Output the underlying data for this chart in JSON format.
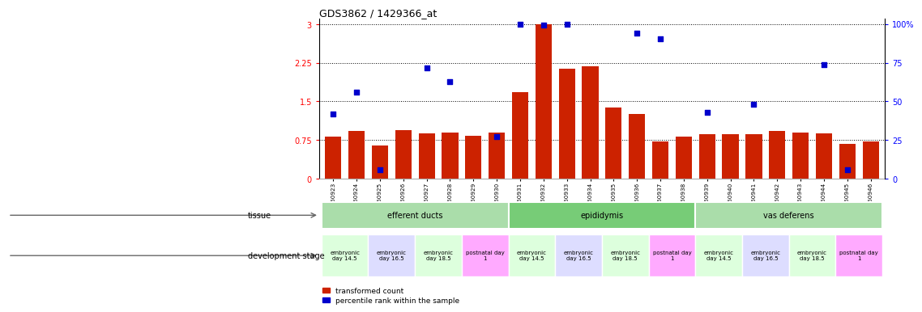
{
  "title": "GDS3862 / 1429366_at",
  "samples": [
    "GSM560923",
    "GSM560924",
    "GSM560925",
    "GSM560926",
    "GSM560927",
    "GSM560928",
    "GSM560929",
    "GSM560930",
    "GSM560931",
    "GSM560932",
    "GSM560933",
    "GSM560934",
    "GSM560935",
    "GSM560936",
    "GSM560937",
    "GSM560938",
    "GSM560939",
    "GSM560940",
    "GSM560941",
    "GSM560942",
    "GSM560943",
    "GSM560944",
    "GSM560945",
    "GSM560946"
  ],
  "bar_values": [
    0.82,
    0.93,
    0.65,
    0.95,
    0.88,
    0.9,
    0.83,
    0.9,
    1.68,
    3.0,
    2.13,
    2.18,
    1.38,
    1.25,
    0.72,
    0.82,
    0.87,
    0.87,
    0.87,
    0.92,
    0.9,
    0.88,
    0.68,
    0.72
  ],
  "scatter_values": [
    1.25,
    1.68,
    0.18,
    null,
    2.15,
    1.88,
    null,
    0.82,
    3.0,
    2.98,
    3.0,
    null,
    null,
    2.82,
    2.72,
    null,
    1.28,
    null,
    1.45,
    null,
    null,
    2.22,
    0.18,
    null
  ],
  "ylim_left": [
    0,
    3.1
  ],
  "ylim_right": [
    0,
    103.3
  ],
  "yticks_left": [
    0,
    0.75,
    1.5,
    2.25,
    3.0
  ],
  "yticks_right": [
    0,
    25,
    50,
    75,
    100
  ],
  "bar_color": "#cc2200",
  "scatter_color": "#0000cc",
  "tissue_defs": [
    {
      "label": "efferent ducts",
      "start": 0,
      "end": 8,
      "color": "#aaddaa"
    },
    {
      "label": "epididymis",
      "start": 8,
      "end": 16,
      "color": "#77cc77"
    },
    {
      "label": "vas deferens",
      "start": 16,
      "end": 24,
      "color": "#aaddaa"
    }
  ],
  "dev_stage_groups": [
    {
      "label": "embryonic\nday 14.5",
      "start": 0,
      "end": 2,
      "color": "#ddffdd"
    },
    {
      "label": "embryonic\nday 16.5",
      "start": 2,
      "end": 4,
      "color": "#ddddff"
    },
    {
      "label": "embryonic\nday 18.5",
      "start": 4,
      "end": 6,
      "color": "#ddffdd"
    },
    {
      "label": "postnatal day\n1",
      "start": 6,
      "end": 8,
      "color": "#ffaaff"
    },
    {
      "label": "embryonic\nday 14.5",
      "start": 8,
      "end": 10,
      "color": "#ddffdd"
    },
    {
      "label": "embryonic\nday 16.5",
      "start": 10,
      "end": 12,
      "color": "#ddddff"
    },
    {
      "label": "embryonic\nday 18.5",
      "start": 12,
      "end": 14,
      "color": "#ddffdd"
    },
    {
      "label": "postnatal day\n1",
      "start": 14,
      "end": 16,
      "color": "#ffaaff"
    },
    {
      "label": "embryonic\nday 14.5",
      "start": 16,
      "end": 18,
      "color": "#ddffdd"
    },
    {
      "label": "embryonic\nday 16.5",
      "start": 18,
      "end": 20,
      "color": "#ddddff"
    },
    {
      "label": "embryonic\nday 18.5",
      "start": 20,
      "end": 22,
      "color": "#ddffdd"
    },
    {
      "label": "postnatal day\n1",
      "start": 22,
      "end": 24,
      "color": "#ffaaff"
    }
  ],
  "legend_bar_label": "transformed count",
  "legend_scatter_label": "percentile rank within the sample",
  "tissue_row_label": "tissue",
  "dev_stage_row_label": "development stage"
}
